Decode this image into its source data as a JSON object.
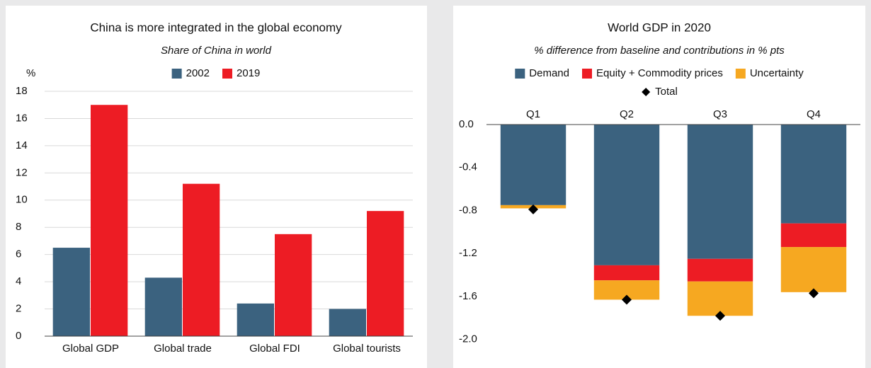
{
  "chart_data": [
    {
      "type": "bar",
      "title": "China is more integrated in the global economy",
      "subtitle": "Share of China in world",
      "ylabel": "%",
      "categories": [
        "Global GDP",
        "Global trade",
        "Global FDI",
        "Global tourists"
      ],
      "series": [
        {
          "name": "2002",
          "color": "#3b627f",
          "values": [
            6.5,
            4.3,
            2.4,
            2.0
          ]
        },
        {
          "name": "2019",
          "color": "#ed1c24",
          "values": [
            17.0,
            11.2,
            7.5,
            9.2
          ]
        }
      ],
      "ylim": [
        0,
        18
      ],
      "yticks": [
        0,
        2,
        4,
        6,
        8,
        10,
        12,
        14,
        16,
        18
      ],
      "grid": true,
      "legend": "top"
    },
    {
      "type": "stacked_bar",
      "title": "World GDP in 2020",
      "subtitle": "% difference from baseline and contributions in % pts",
      "categories": [
        "Q1",
        "Q2",
        "Q3",
        "Q4"
      ],
      "category_axis": "top",
      "series": [
        {
          "name": "Demand",
          "color": "#3b627f",
          "values": [
            -0.75,
            -1.31,
            -1.25,
            -0.92
          ]
        },
        {
          "name": "Equity + Commodity prices",
          "color": "#ed1c24",
          "values": [
            0,
            -0.14,
            -0.21,
            -0.22
          ]
        },
        {
          "name": "Uncertainty",
          "color": "#f6a821",
          "values": [
            -0.03,
            -0.18,
            -0.32,
            -0.42
          ]
        },
        {
          "name": "Total",
          "color": "#000000",
          "marker": "diamond",
          "values": [
            -0.79,
            -1.63,
            -1.78,
            -1.57
          ]
        }
      ],
      "ylim": [
        -2.2,
        0
      ],
      "yticks": [
        {
          "value": 0,
          "label": "0.0"
        },
        -0.4,
        -0.8,
        -1.2,
        -1.6,
        {
          "value": -2,
          "label": "-2.0"
        }
      ],
      "grid": false,
      "legend": "top"
    }
  ]
}
